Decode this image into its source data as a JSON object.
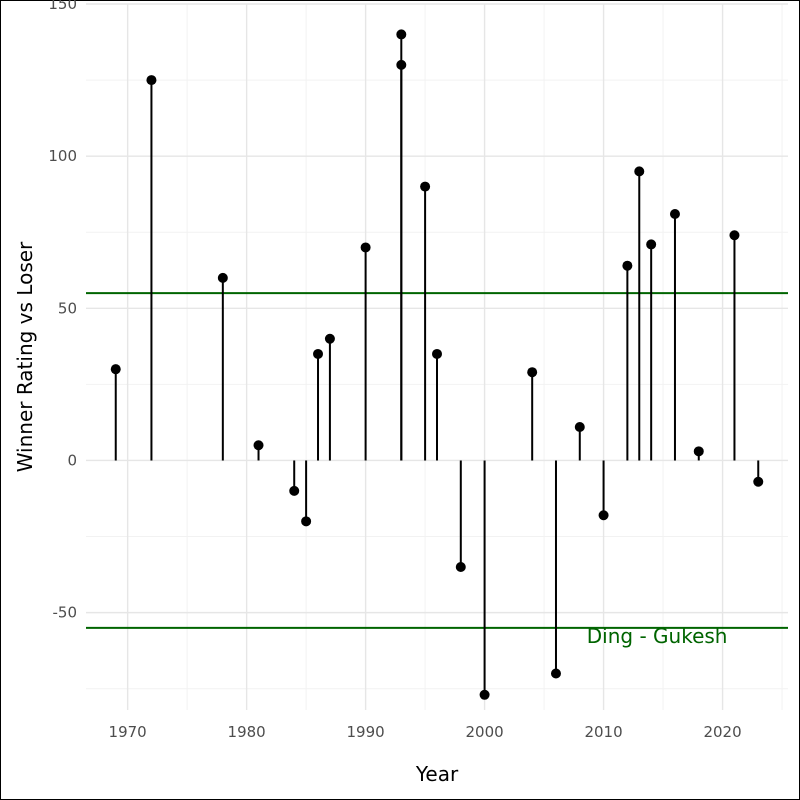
{
  "chart_data": {
    "type": "lollipop",
    "title": "",
    "xlabel": "Year",
    "ylabel": "Winner Rating vs Loser",
    "xlim": [
      1966.5,
      2025.5
    ],
    "ylim": [
      -82,
      150
    ],
    "x_ticks": [
      1970,
      1980,
      1990,
      2000,
      2010,
      2020
    ],
    "y_ticks": [
      -50,
      0,
      50,
      100,
      150
    ],
    "grid": true,
    "points": [
      {
        "year": 1969,
        "value": 30
      },
      {
        "year": 1972,
        "value": 125
      },
      {
        "year": 1978,
        "value": 60
      },
      {
        "year": 1981,
        "value": 5
      },
      {
        "year": 1984,
        "value": -10
      },
      {
        "year": 1985,
        "value": -20
      },
      {
        "year": 1986,
        "value": 35
      },
      {
        "year": 1987,
        "value": 40
      },
      {
        "year": 1990,
        "value": 70
      },
      {
        "year": 1993,
        "value": 130
      },
      {
        "year": 1993,
        "value": 140
      },
      {
        "year": 1995,
        "value": 90
      },
      {
        "year": 1996,
        "value": 35
      },
      {
        "year": 1998,
        "value": -35
      },
      {
        "year": 2000,
        "value": -77
      },
      {
        "year": 2004,
        "value": 29
      },
      {
        "year": 2006,
        "value": -70
      },
      {
        "year": 2008,
        "value": 11
      },
      {
        "year": 2010,
        "value": -18
      },
      {
        "year": 2012,
        "value": 64
      },
      {
        "year": 2013,
        "value": 95
      },
      {
        "year": 2014,
        "value": 71
      },
      {
        "year": 2016,
        "value": 81
      },
      {
        "year": 2018,
        "value": 3
      },
      {
        "year": 2021,
        "value": 74
      },
      {
        "year": 2023,
        "value": -7
      }
    ],
    "reference_lines": [
      {
        "value": 55,
        "color": "#006400"
      },
      {
        "value": -55,
        "color": "#006400"
      }
    ],
    "annotations": [
      {
        "text": "Ding - Gukesh",
        "x": 2014.5,
        "y": -60,
        "color": "#006400"
      }
    ],
    "colors": {
      "points": "#000000",
      "stems": "#000000",
      "grid_major": "#e6e6e6",
      "grid_minor": "#f2f2f2"
    }
  }
}
